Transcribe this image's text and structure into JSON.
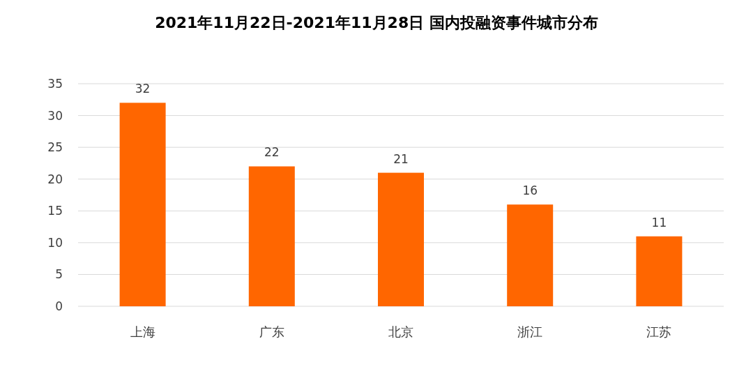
{
  "chart_data": {
    "type": "bar",
    "title": "2021年11月22日-2021年11月28日 国内投融资事件城市分布",
    "categories": [
      "上海",
      "广东",
      "北京",
      "浙江",
      "江苏"
    ],
    "values": [
      32,
      22,
      21,
      16,
      11
    ],
    "color": "#ff6600",
    "ylim": [
      0,
      35
    ],
    "yticks": [
      0,
      5,
      10,
      15,
      20,
      25,
      30,
      35
    ],
    "grid": "y",
    "data_labels": true
  }
}
